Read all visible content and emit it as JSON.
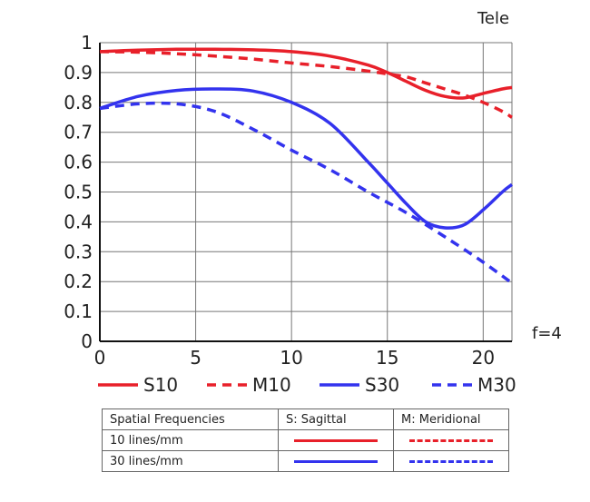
{
  "chart_data": {
    "type": "line",
    "title": "Tele",
    "annotation": "f=4",
    "xlabel": "",
    "ylabel": "",
    "xlim": [
      0,
      21.5
    ],
    "ylim": [
      0,
      1
    ],
    "x_ticks": [
      0,
      5,
      10,
      15,
      20
    ],
    "y_ticks": [
      0,
      0.1,
      0.2,
      0.3,
      0.4,
      0.5,
      0.6,
      0.7,
      0.8,
      0.9,
      1
    ],
    "y_tick_labels": [
      "0",
      "0.1",
      "0.2",
      "0.3",
      "0.4",
      "0.5",
      "0.6",
      "0.7",
      "0.8",
      "0.9",
      "1"
    ],
    "grid": true,
    "series": [
      {
        "name": "S10",
        "color": "#e8202a",
        "dash": false,
        "x": [
          0,
          2,
          4,
          6,
          8,
          10,
          12,
          14,
          15,
          16,
          17,
          18,
          19,
          20,
          21,
          21.5
        ],
        "y": [
          0.97,
          0.975,
          0.978,
          0.978,
          0.976,
          0.97,
          0.955,
          0.925,
          0.9,
          0.87,
          0.84,
          0.82,
          0.815,
          0.83,
          0.845,
          0.85
        ]
      },
      {
        "name": "M10",
        "color": "#e8202a",
        "dash": true,
        "x": [
          0,
          2,
          4,
          6,
          8,
          10,
          12,
          14,
          15,
          16,
          17,
          18,
          19,
          20,
          21,
          21.5
        ],
        "y": [
          0.97,
          0.968,
          0.963,
          0.955,
          0.945,
          0.932,
          0.92,
          0.905,
          0.895,
          0.885,
          0.865,
          0.845,
          0.825,
          0.8,
          0.77,
          0.75
        ]
      },
      {
        "name": "S30",
        "color": "#3333ee",
        "dash": false,
        "x": [
          0,
          2,
          4,
          6,
          8,
          10,
          12,
          14,
          15,
          16,
          17,
          18,
          19,
          20,
          21,
          21.5
        ],
        "y": [
          0.78,
          0.82,
          0.84,
          0.845,
          0.838,
          0.8,
          0.73,
          0.6,
          0.53,
          0.46,
          0.4,
          0.38,
          0.39,
          0.44,
          0.5,
          0.525
        ]
      },
      {
        "name": "M30",
        "color": "#3333ee",
        "dash": true,
        "x": [
          0,
          2,
          4,
          6,
          8,
          10,
          12,
          14,
          16,
          18,
          20,
          21.5
        ],
        "y": [
          0.78,
          0.795,
          0.795,
          0.77,
          0.71,
          0.64,
          0.575,
          0.5,
          0.43,
          0.35,
          0.265,
          0.195
        ]
      }
    ],
    "legend_position": "bottom",
    "table": {
      "header": [
        "Spatial Frequencies",
        "S: Sagittal",
        "M: Meridional"
      ],
      "rows": [
        {
          "label": "10 lines/mm",
          "color": "#e8202a"
        },
        {
          "label": "30 lines/mm",
          "color": "#3333ee"
        }
      ]
    }
  }
}
